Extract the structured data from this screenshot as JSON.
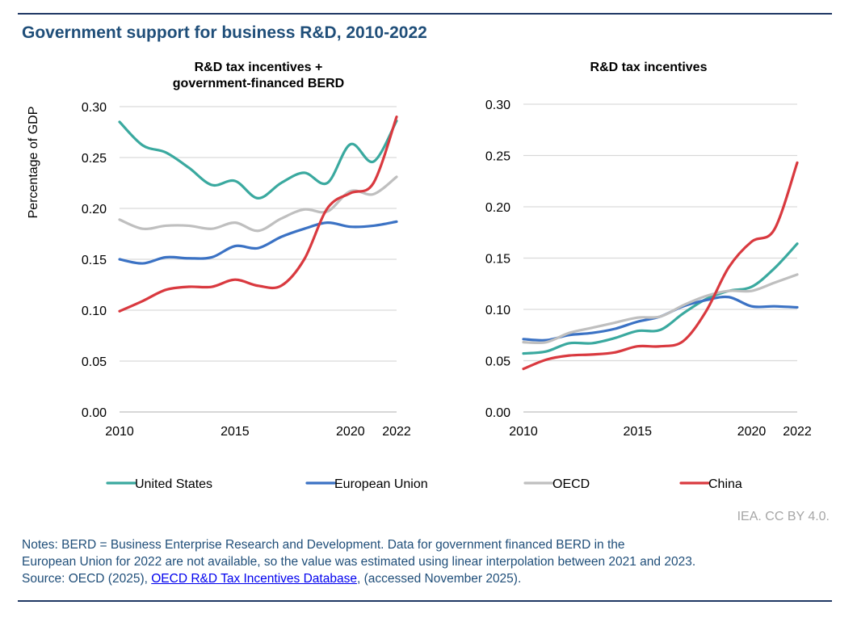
{
  "title": "Government support for business R&D, 2010-2022",
  "credit": "IEA. CC BY 4.0.",
  "notes": {
    "line1": "Notes: BERD = Business Enterprise Research and Development. Data for government financed BERD in the",
    "line2": "European Union for 2022 are not available, so the value was estimated using linear interpolation between 2021 and 2023.",
    "source_prefix": "Source: OECD (2025), ",
    "source_link": "OECD R&D Tax Incentives Database",
    "source_suffix": ", (accessed November 2025)."
  },
  "legend": [
    {
      "name": "United States",
      "color": "#3aa99f"
    },
    {
      "name": "European Union",
      "color": "#3b72c4"
    },
    {
      "name": "OECD",
      "color": "#bfbfbf"
    },
    {
      "name": "China",
      "color": "#d9393f"
    }
  ],
  "chart_data": [
    {
      "type": "line",
      "title_lines": [
        "R&D tax incentives +",
        "government-financed BERD"
      ],
      "ylabel": "Percentage of GDP",
      "ylim": [
        0,
        0.3
      ],
      "yticks": [
        "0.00",
        "0.05",
        "0.10",
        "0.15",
        "0.20",
        "0.25",
        "0.30"
      ],
      "xlim": [
        2010,
        2022
      ],
      "xticks": [
        "2010",
        "2015",
        "2020",
        "2022"
      ],
      "x": [
        2010,
        2011,
        2012,
        2013,
        2014,
        2015,
        2016,
        2017,
        2018,
        2019,
        2020,
        2021,
        2022
      ],
      "series": [
        {
          "name": "United States",
          "color": "#3aa99f",
          "values": [
            0.285,
            0.262,
            0.255,
            0.24,
            0.223,
            0.227,
            0.21,
            0.225,
            0.235,
            0.225,
            0.263,
            0.246,
            0.286
          ]
        },
        {
          "name": "European Union",
          "color": "#3b72c4",
          "values": [
            0.15,
            0.146,
            0.152,
            0.151,
            0.152,
            0.163,
            0.161,
            0.172,
            0.18,
            0.186,
            0.182,
            0.183,
            0.187
          ]
        },
        {
          "name": "OECD",
          "color": "#bfbfbf",
          "values": [
            0.189,
            0.18,
            0.183,
            0.183,
            0.18,
            0.186,
            0.178,
            0.19,
            0.199,
            0.197,
            0.217,
            0.214,
            0.231
          ]
        },
        {
          "name": "China",
          "color": "#d9393f",
          "values": [
            0.099,
            0.109,
            0.12,
            0.123,
            0.123,
            0.13,
            0.124,
            0.124,
            0.15,
            0.2,
            0.215,
            0.225,
            0.29
          ]
        }
      ]
    },
    {
      "type": "line",
      "title_lines": [
        "R&D tax incentives"
      ],
      "ylabel": "",
      "ylim": [
        0,
        0.3
      ],
      "yticks": [
        "0.00",
        "0.05",
        "0.10",
        "0.15",
        "0.20",
        "0.25",
        "0.30"
      ],
      "xlim": [
        2010,
        2022
      ],
      "xticks": [
        "2010",
        "2015",
        "2020",
        "2022"
      ],
      "x": [
        2010,
        2011,
        2012,
        2013,
        2014,
        2015,
        2016,
        2017,
        2018,
        2019,
        2020,
        2021,
        2022
      ],
      "series": [
        {
          "name": "United States",
          "color": "#3aa99f",
          "values": [
            0.057,
            0.059,
            0.067,
            0.067,
            0.072,
            0.079,
            0.08,
            0.096,
            0.11,
            0.118,
            0.122,
            0.14,
            0.164
          ]
        },
        {
          "name": "European Union",
          "color": "#3b72c4",
          "values": [
            0.071,
            0.07,
            0.075,
            0.077,
            0.081,
            0.088,
            0.093,
            0.103,
            0.109,
            0.112,
            0.103,
            0.103,
            0.102
          ]
        },
        {
          "name": "OECD",
          "color": "#bfbfbf",
          "values": [
            0.068,
            0.068,
            0.077,
            0.082,
            0.087,
            0.092,
            0.093,
            0.104,
            0.113,
            0.118,
            0.118,
            0.126,
            0.134
          ]
        },
        {
          "name": "China",
          "color": "#d9393f",
          "values": [
            0.042,
            0.051,
            0.055,
            0.056,
            0.058,
            0.064,
            0.064,
            0.069,
            0.098,
            0.141,
            0.166,
            0.178,
            0.243
          ]
        }
      ]
    }
  ]
}
